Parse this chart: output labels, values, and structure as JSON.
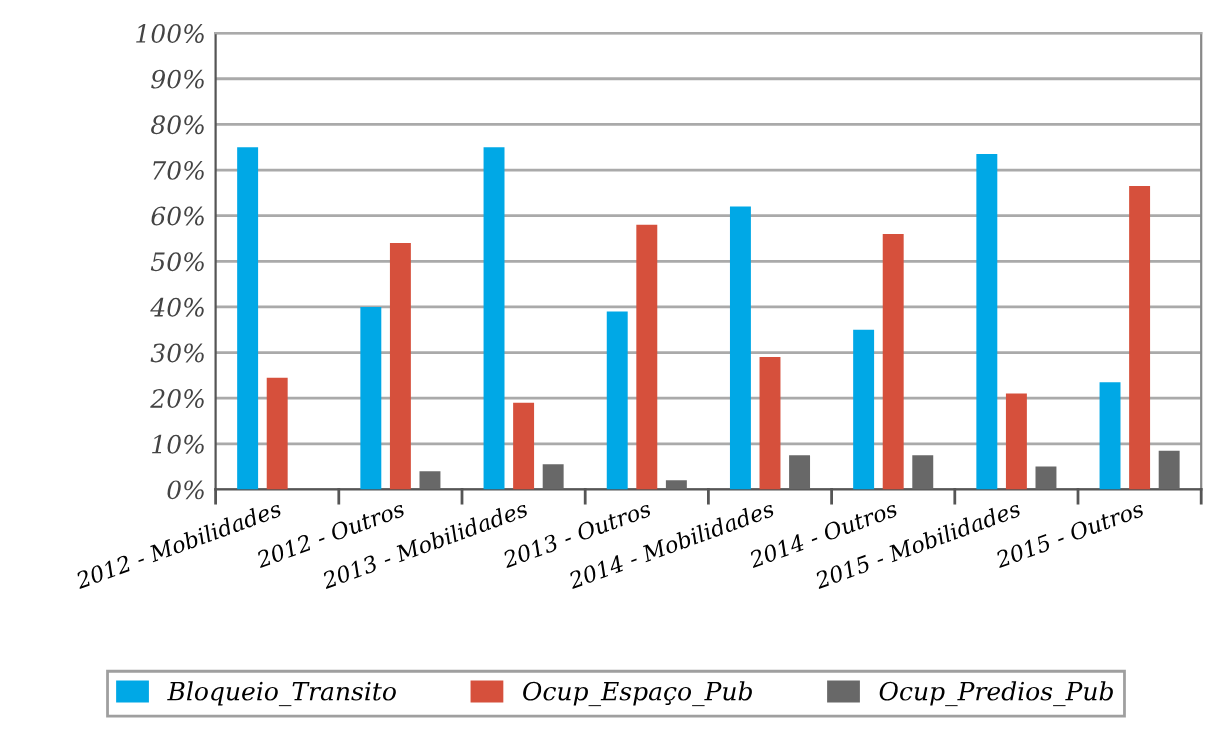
{
  "chart_data": {
    "type": "bar",
    "categories": [
      "2012 - Mobilidades",
      "2012 - Outros",
      "2013 - Mobilidades",
      "2013 - Outros",
      "2014 - Mobilidades",
      "2014 - Outros",
      "2015 - Mobilidades",
      "2015 - Outros"
    ],
    "series": [
      {
        "name": "Bloqueio_Transito",
        "color": "#00a8e6",
        "values": [
          75,
          40,
          75,
          39,
          62,
          35,
          73.5,
          23.5
        ]
      },
      {
        "name": "Ocup_Espaço_Pub",
        "color": "#d6503c",
        "values": [
          24.5,
          54,
          19,
          58,
          29,
          56,
          21,
          66.5
        ]
      },
      {
        "name": "Ocup_Predios_Pub",
        "color": "#686868",
        "values": [
          0,
          4,
          5.5,
          2,
          7.5,
          7.5,
          5,
          8.5
        ]
      }
    ],
    "ylim": [
      0,
      100
    ],
    "yticks": [
      {
        "value": 0,
        "label": "0%"
      },
      {
        "value": 10,
        "label": "10%"
      },
      {
        "value": 20,
        "label": "20%"
      },
      {
        "value": 30,
        "label": "30%"
      },
      {
        "value": 40,
        "label": "40%"
      },
      {
        "value": 50,
        "label": "50%"
      },
      {
        "value": 60,
        "label": "60%"
      },
      {
        "value": 70,
        "label": "70%"
      },
      {
        "value": 80,
        "label": "80%"
      },
      {
        "value": 90,
        "label": "90%"
      },
      {
        "value": 100,
        "label": "100%"
      }
    ],
    "grid": "y",
    "legend": "bottom"
  }
}
